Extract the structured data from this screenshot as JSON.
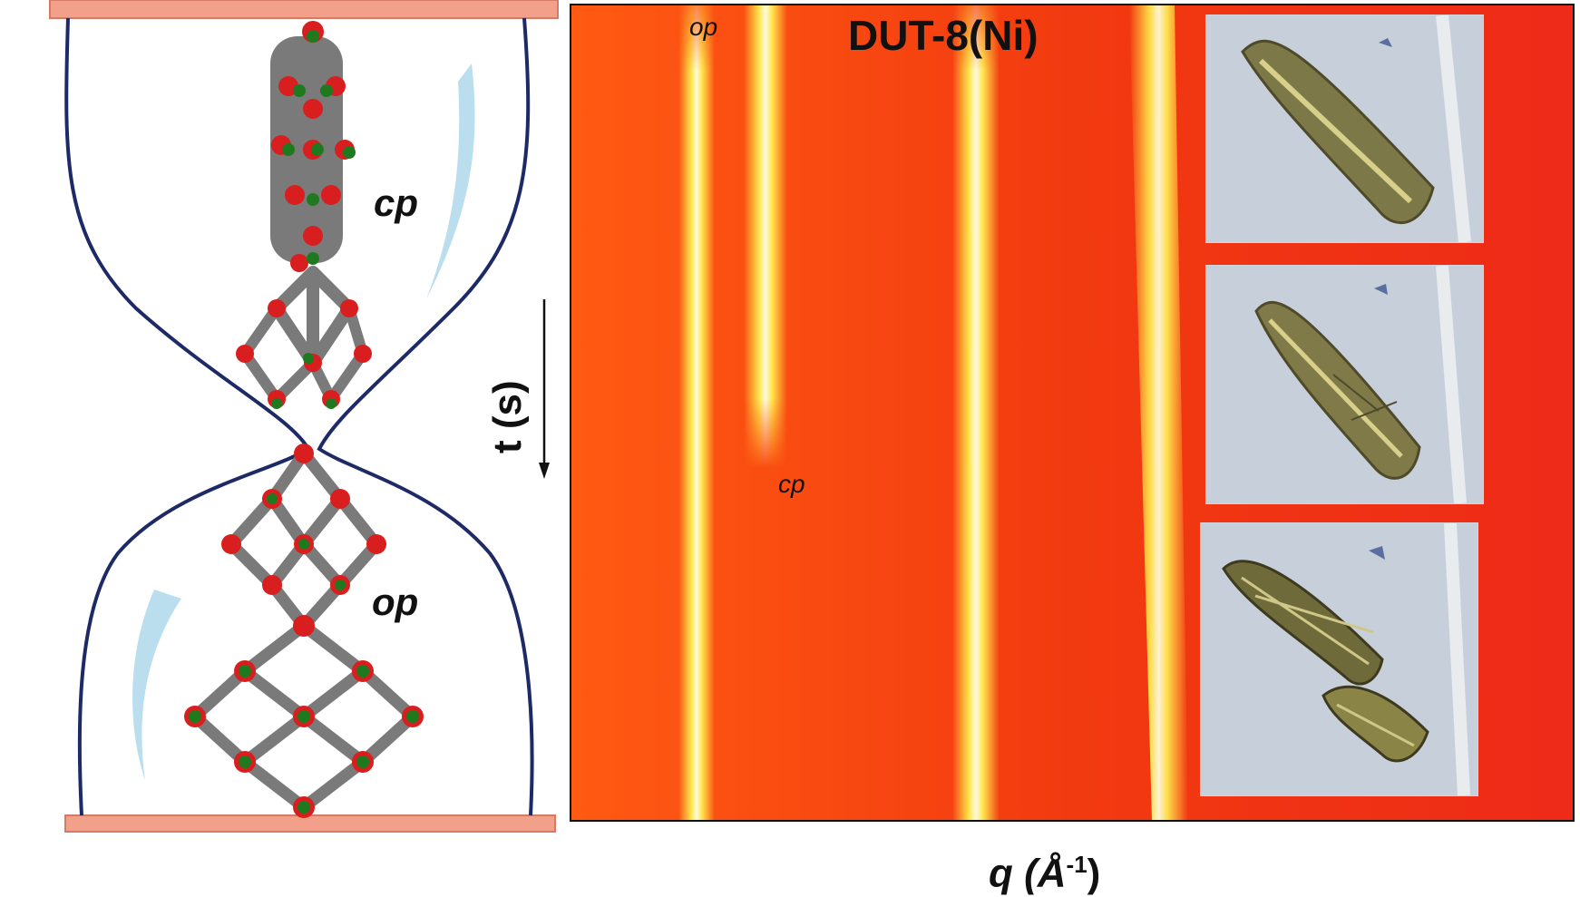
{
  "labels": {
    "cp_left": "cp",
    "op_left": "op",
    "title": "DUT-8(Ni)",
    "op_top": "op",
    "cp_mid": "cp",
    "time_axis": "t (s)",
    "q_axis": "q (Å",
    "q_axis_sup": "-1",
    "q_axis_close": ")"
  },
  "colors": {
    "heat_background": "#f03a10",
    "heat_band": "#ffe54a",
    "heat_core": "#fffbe0",
    "hourglass_outline": "#1d2a66",
    "glass_highlight": "#a9d6e8",
    "plate": "#f2a08a",
    "atom_gray": "#7a7a7a",
    "atom_red": "#d81e1e",
    "atom_green": "#1f7a1f"
  },
  "icons": {
    "framework_cp": "framework-cp-icon",
    "framework_op": "framework-op-icon",
    "crystal": "crystal-photo-icon",
    "time_arrow": "down-arrow-icon"
  }
}
